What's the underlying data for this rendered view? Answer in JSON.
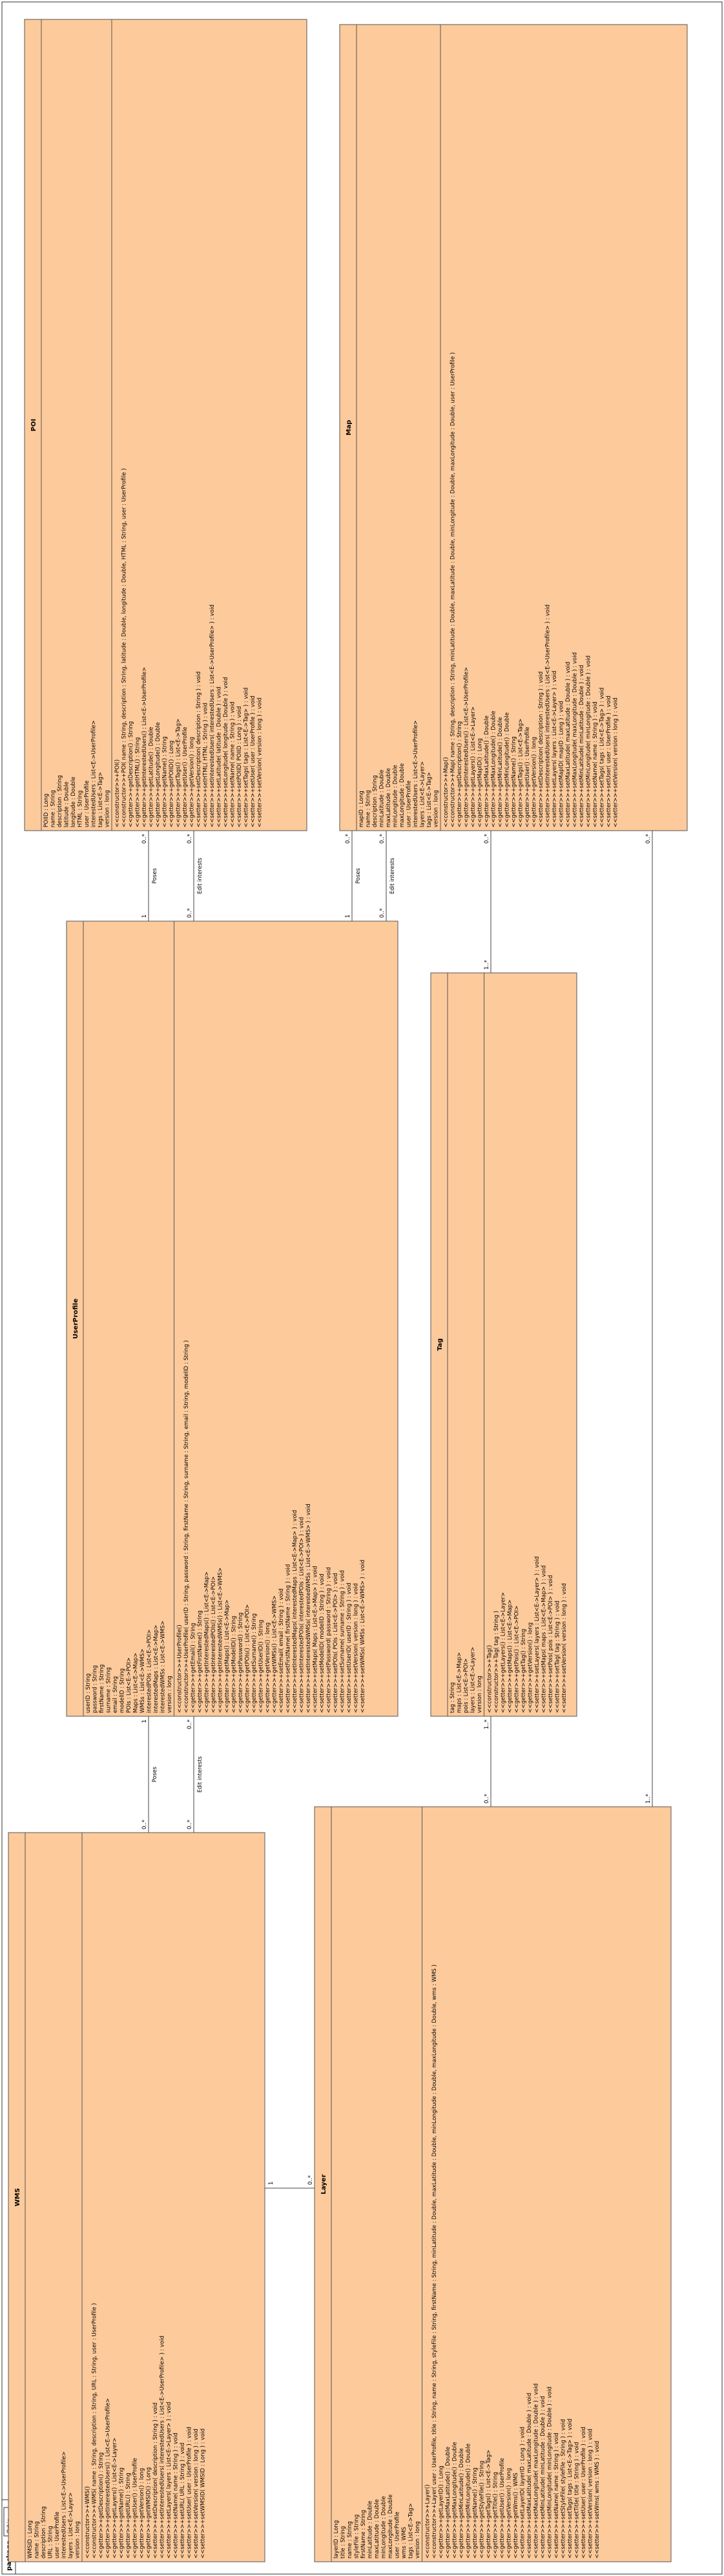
{
  "package": {
    "keyword": "package",
    "name": "Orbis"
  },
  "classes": [
    {
      "name": "POI",
      "attributes": [
        "POIID : Long",
        "name : String",
        "description : String",
        "latitude : Double",
        "longitude : Double",
        "HTML : String",
        "user : UserProfile",
        "interestedUsers : List<E->UserProfile>",
        "tags : List<E->Tag>",
        "version : long"
      ],
      "operations": [
        "<<constructor>>+POI()",
        "<<constructor>>+POI( name : String, description : String, latitude : Double, longitude : Double, HTML : String, user : UserProfile )",
        "<<getter>>+getDescription() : String",
        "<<getter>>+getHTML() : String",
        "<<getter>>+getInterestedUsers() : List<E->UserProfile>",
        "<<getter>>+getLatitude() : Double",
        "<<getter>>+getLongitude() : Double",
        "<<getter>>+getName() : String",
        "<<getter>>+getPOIID() : Long",
        "<<getter>>+getTags() : List<E->Tag>",
        "<<getter>>+getUser() : UserProfile",
        "<<getter>>+getVersion() : long",
        "<<setter>>+setDescription( description : String ) : void",
        "<<setter>>+setHTML( HTML : String ) : void",
        "<<setter>>+setInterestedUsers( interestedUsers : List<E->UserProfile> ) : void",
        "<<setter>>+setLatitude( latitude : Double ) : void",
        "<<setter>>+setLongitude( longitude : Double ) : void",
        "<<setter>>+setName( name : String ) : void",
        "<<setter>>+setPOIID( POIID : Long ) : void",
        "<<setter>>+setTags( tags : List<E->Tag> ) : void",
        "<<setter>>+setUser( user : UserProfile ) : void",
        "<<setter>>+setVersion( version : long ) : void"
      ]
    },
    {
      "name": "Map",
      "attributes": [
        "mapID : Long",
        "name : String",
        "description : String",
        "minLatitude : Double",
        "maxLatitude : Double",
        "minLongitude : Double",
        "maxLongitude : Double",
        "user : UserProfile",
        "interestedUsers : List<E->UserProfile>",
        "layers : List<E->Layer>",
        "tags : List<E->Tag>",
        "version : long"
      ],
      "operations": [
        "<<constructor>>+Map()",
        "<<constructor>>+Map( name : String, description : String, minLatitude : Double, maxLatitude : Double, minLongitude : Double, maxLongitude : Double, user : UserProfile )",
        "<<getter>>+getDescription() : String",
        "<<getter>>+getInterestedUsers() : List<E->UserProfile>",
        "<<getter>>+getLayers() : List<E->Layer>",
        "<<getter>>+getMapID() : Long",
        "<<getter>>+getMaxLatitude() : Double",
        "<<getter>>+getMaxLongitude() : Double",
        "<<getter>>+getMinLatitude() : Double",
        "<<getter>>+getMinLongitude() : Double",
        "<<getter>>+getName() : String",
        "<<getter>>+getTags() : List<E->Tag>",
        "<<getter>>+getUser() : UserProfile",
        "<<getter>>+getVersion() : long",
        "<<setter>>+setDescription( description : String ) : void",
        "<<setter>>+setInterestedUsers( interestedUsers : List<E->UserProfile> ) : void",
        "<<setter>>+setLayers( layers : List<E->Layer> ) : void",
        "<<setter>>+setMapID( mapID : Long ) : void",
        "<<setter>>+setMaxLatitude( maxLatitude : Double ) : void",
        "<<setter>>+setMaxLongitude( maxLongitude : Double ) : void",
        "<<setter>>+setMinLatitude( minLatitude : Double ) : void",
        "<<setter>>+setMinLongitude( minLongitude : Double ) : void",
        "<<setter>>+setName( name : String ) : void",
        "<<setter>>+setTags( tags : List<E->Tag> ) : void",
        "<<setter>>+setUser( user : UserProfile ) : void",
        "<<setter>>+setVersion( version : long ) : void"
      ]
    },
    {
      "name": "UserProfile",
      "attributes": [
        "userID : String",
        "password : String",
        "firstName : String",
        "surname : String",
        "email : String",
        "modelID : String",
        "POIs : List<E->POI>",
        "Maps : List<E->Map>",
        "WMSs : List<E->WMS>",
        "interestedPOIs : List<E->POI>",
        "interestedMaps : List<E->Map>",
        "interestedWMSs : List<E->WMS>",
        "version : long"
      ],
      "operations": [
        "<<constructor>>+UserProfile()",
        "<<constructor>>+UserProfile( userID : String, password : String, firstName : String, surname : String, email : String, modelID : String )",
        "<<getter>>+getEmail() : String",
        "<<getter>>+getFirstName() : String",
        "<<getter>>+getInterestedMaps() : List<E->Map>",
        "<<getter>>+getInterestedPOIs() : List<E->POI>",
        "<<getter>>+getInterestedWMSs() : List<E->WMS>",
        "<<getter>>+getMaps() : List<E->Map>",
        "<<getter>>+getModelID() : String",
        "<<getter>>+getPassword() : String",
        "<<getter>>+getPOIs() : List<E->POI>",
        "<<getter>>+getSurname() : String",
        "<<getter>>+getUserID() : String",
        "<<getter>>+getVersion() : long",
        "<<getter>>+getWMSs() : List<E->WMS>",
        "<<setter>>+setEmail( email : String ) : void",
        "<<setter>>+setFirstName( firstName : String ) : void",
        "<<setter>>+setInterestedMaps( interestedMaps : List<E->Map> ) : void",
        "<<setter>>+setInterestedPOIs( interestedPOIs : List<E->POI> ) : void",
        "<<setter>>+setInterestedWMSs( interestedWMSs : List<E->WMS> ) : void",
        "<<setter>>+setMaps( Maps : List<E->Map> ) : void",
        "<<setter>>+setModelID( modelID : String ) : void",
        "<<setter>>+setPassword( password : String ) : void",
        "<<setter>>+setPOIs( POIs : List<E->POI> ) : void",
        "<<setter>>+setSurname( surname : String ) : void",
        "<<setter>>+setUserID( userID : String ) : void",
        "<<setter>>+setVersion( version : long ) : void",
        "<<setter>>+setWMSs( WMSs : List<E->WMS> ) : void"
      ]
    },
    {
      "name": "Tag",
      "attributes": [
        "tag : String",
        "maps : List<E->Map>",
        "pois : List<E->POI>",
        "layers : List<E->Layer>",
        "version : long"
      ],
      "operations": [
        "<<constructor>>+Tag()",
        "<<constructor>>+Tag( tag : String )",
        "<<getter>>+getLayers() : List<E->Layer>",
        "<<getter>>+getMaps() : List<E->Map>",
        "<<getter>>+getPois() : List<E->POI>",
        "<<getter>>+getTag() : String",
        "<<getter>>+getVersion() : long",
        "<<setter>>+setLayers( layers : List<E->Layer> ) : void",
        "<<setter>>+setMaps( maps : List<E->Map> ) : void",
        "<<setter>>+setPois( pois : List<E->POI> ) : void",
        "<<setter>>+setTag( tag : String ) : void",
        "<<setter>>+setVersion( version : long ) : void"
      ]
    },
    {
      "name": "WMS",
      "attributes": [
        "WMSID : Long",
        "name : String",
        "description : String",
        "URL : String",
        "user : UserProfile",
        "interestedUsers : List<E->UserProfile>",
        "layers : List<E->Layer>",
        "version : long"
      ],
      "operations": [
        "<<constructor>>+WMS()",
        "<<constructor>>+WMS( name : String, description : String, URL : String, user : UserProfile )",
        "<<getter>>+getDescription() : String",
        "<<getter>>+getInterestedUsers() : List<E->UserProfile>",
        "<<getter>>+getLayers() : List<E->Layer>",
        "<<getter>>+getName() : String",
        "<<getter>>+getURL() : String",
        "<<getter>>+getUser() : UserProfile",
        "<<getter>>+getVersion() : long",
        "<<getter>>+getWMSID() : Long",
        "<<setter>>+setDescription( description : String ) : void",
        "<<setter>>+setInterestedUsers( interestedUsers : List<E->UserProfile> ) : void",
        "<<setter>>+setLayers( layers : List<E->Layer> ) : void",
        "<<setter>>+setName( name : String ) : void",
        "<<setter>>+setURL( URL : String ) : void",
        "<<setter>>+setUser( user : UserProfile ) : void",
        "<<setter>>+setVersion( version : long ) : void",
        "<<setter>>+setWMSID( WMSID : Long ) : void"
      ]
    },
    {
      "name": "Layer",
      "attributes": [
        "layerID : Long",
        "title : String",
        "name : String",
        "styleFile : String",
        "firstName : String",
        "minLatitude : Double",
        "maxLatitude : Double",
        "minLongitude : Double",
        "maxLongitude : Double",
        "user : UserProfile",
        "wms : WMS",
        "tags : List<E->Tag>",
        "version : long"
      ],
      "operations": [
        "<<constructor>>+Layer()",
        "<<constructor>>+Layer( user : UserProfile, title : String, name : String, styleFile : String, firstName : String, minLatitude : Double, maxLatitude : Double, minLongitude : Double, maxLongitude : Double, wms : WMS )",
        "<<getter>>+getLayerID() : Long",
        "<<getter>>+getMaxLatitude() : Double",
        "<<getter>>+getMaxLongitude() : Double",
        "<<getter>>+getMinLatitude() : Double",
        "<<getter>>+getMinLongitude() : Double",
        "<<getter>>+getName() : String",
        "<<getter>>+getStyleFile() : String",
        "<<getter>>+getTags() : List<E->Tag>",
        "<<getter>>+getTitle() : String",
        "<<getter>>+getUser() : UserProfile",
        "<<getter>>+getVersion() : long",
        "<<getter>>+getWms() : WMS",
        "<<setter>>+setLayerID( layerID : Long ) : void",
        "<<setter>>+setMaxLatitude( maxLatitude : Double ) : void",
        "<<setter>>+setMaxLongitude( maxLongitude : Double ) : void",
        "<<setter>>+setMinLatitude( minLatitude : Double ) : void",
        "<<setter>>+setMinLongitude( minLongitude : Double ) : void",
        "<<setter>>+setName( name : String ) : void",
        "<<setter>>+setStyleFile( styleFile : String ) : void",
        "<<setter>>+setTags( tags : List<E->Tag> ) : void",
        "<<setter>>+setTitle( title : String ) : void",
        "<<setter>>+setUser( user : UserProfile ) : void",
        "<<setter>>+setVersion( version : long ) : void",
        "<<setter>>+setWms( wms : WMS ) : void"
      ]
    }
  ],
  "associations": [
    {
      "label": "Poses",
      "source_multiplicity": "1",
      "target_multiplicity": "0..*"
    },
    {
      "label": "Edit interests",
      "source_multiplicity": "0..*",
      "target_multiplicity": "0..*"
    },
    {
      "label": "Poses",
      "source_multiplicity": "1",
      "target_multiplicity": "0..*"
    },
    {
      "label": "Edit interests",
      "source_multiplicity": "0..*",
      "target_multiplicity": "0..*"
    },
    {
      "label": "Poses",
      "source_multiplicity": "0..*",
      "target_multiplicity": "1"
    },
    {
      "label": "Edit interests",
      "source_multiplicity": "0..*",
      "target_multiplicity": "0..*"
    },
    {
      "source_multiplicity": "1",
      "target_multiplicity": "0..*"
    },
    {
      "source_multiplicity": "1..*",
      "target_multiplicity": "0..*"
    },
    {
      "source_multiplicity": "0..*",
      "target_multiplicity": "1..*"
    },
    {
      "source_multiplicity": "0..*",
      "target_multiplicity": "1..*"
    }
  ]
}
